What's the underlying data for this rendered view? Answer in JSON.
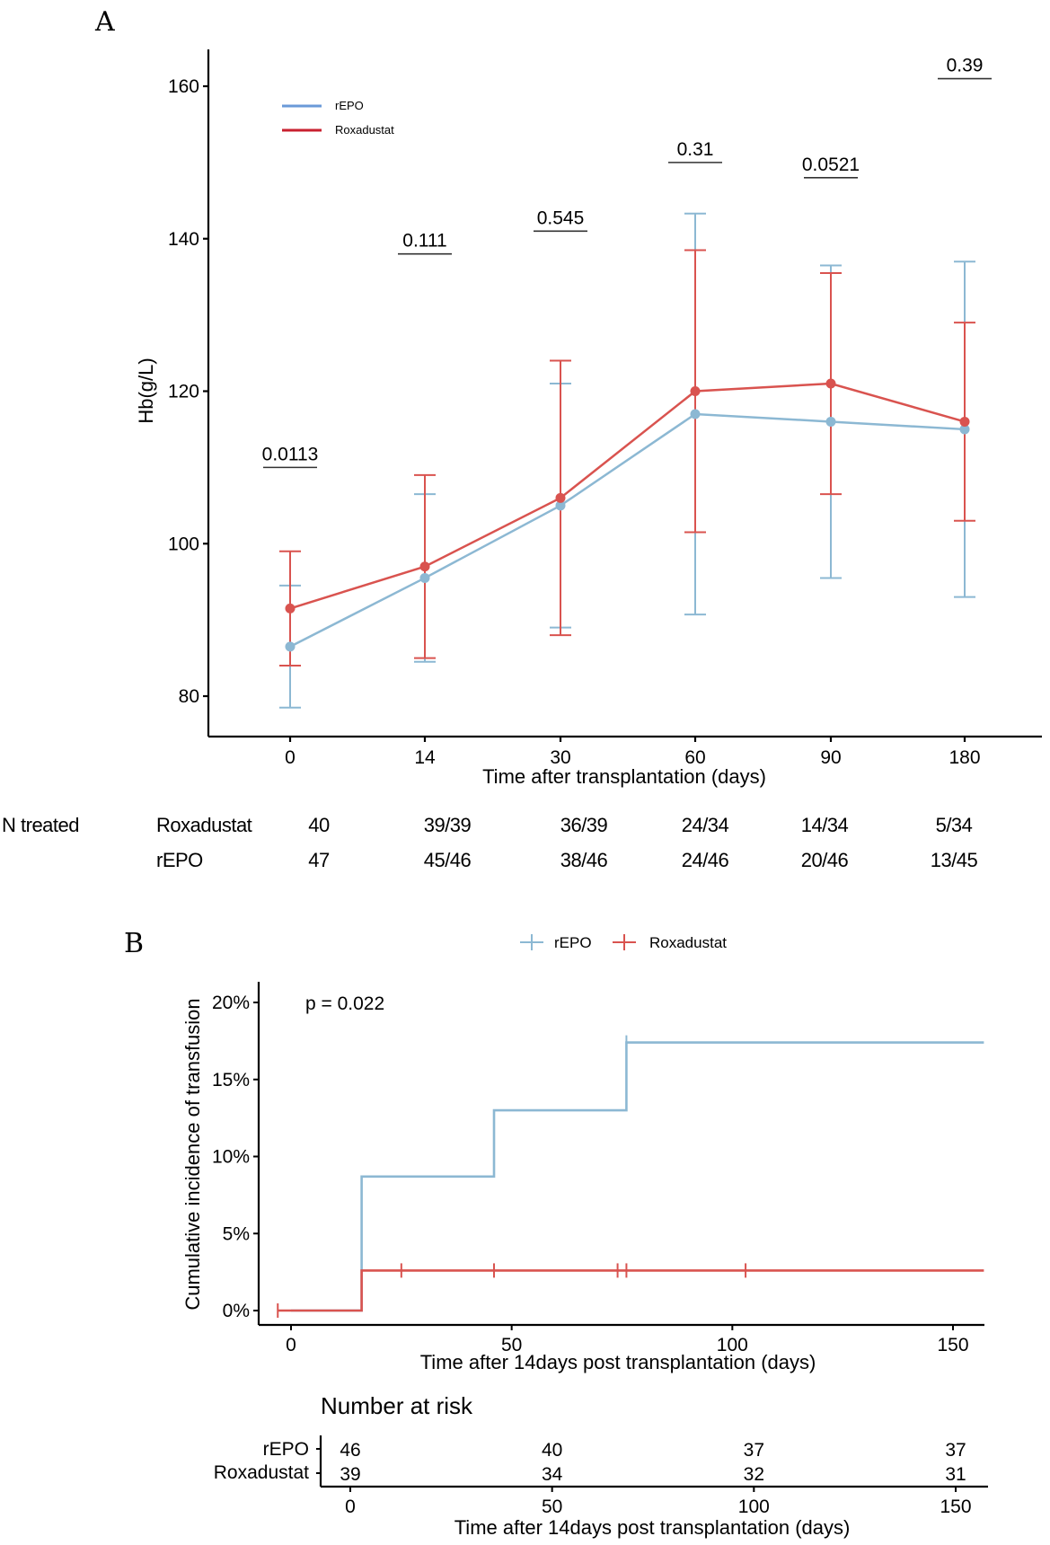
{
  "chart_data": [
    {
      "panel": "A",
      "type": "line",
      "xlabel": "Time after transplantation (days)",
      "ylabel": "Hb(g/L)",
      "categories": [
        "0",
        "14",
        "30",
        "60",
        "90",
        "180"
      ],
      "yticks": [
        80,
        100,
        120,
        140,
        160
      ],
      "ylim": [
        70,
        165
      ],
      "legend_position": "top-left",
      "grid": false,
      "series": [
        {
          "name": "rEPO",
          "color": "#8cb8d3",
          "legend_color": "#6a9ad8",
          "values": [
            86.5,
            95.5,
            105,
            117,
            116,
            115
          ],
          "error_low": [
            78.5,
            84.5,
            89,
            90.7,
            95.5,
            93
          ],
          "error_high": [
            94.5,
            106.5,
            121,
            143.3,
            136.5,
            137
          ]
        },
        {
          "name": "Roxadustat",
          "color": "#d9534f",
          "legend_color": "#c8202f",
          "values": [
            91.5,
            97,
            106,
            120,
            121,
            116
          ],
          "error_low": [
            84,
            85,
            88,
            101.5,
            106.5,
            103
          ],
          "error_high": [
            99,
            109,
            124,
            138.5,
            135.5,
            129
          ]
        }
      ],
      "annotations": [
        {
          "label": "0.0113",
          "category": "0",
          "y": 110
        },
        {
          "label": "0.111",
          "category": "14",
          "y": 138
        },
        {
          "label": "0.545",
          "category": "30",
          "y": 141
        },
        {
          "label": "0.31",
          "category": "60",
          "y": 150
        },
        {
          "label": "0.0521",
          "category": "90",
          "y": 148
        },
        {
          "label": "0.39",
          "category": "180",
          "y": 161
        }
      ],
      "n_treated": {
        "header": "N treated",
        "rows": [
          {
            "group": "Roxadustat",
            "values": [
              "40",
              "39/39",
              "36/39",
              "24/34",
              "14/34",
              "5/34"
            ]
          },
          {
            "group": "rEPO",
            "values": [
              "47",
              "45/46",
              "38/46",
              "24/46",
              "20/46",
              "13/45"
            ]
          }
        ]
      }
    },
    {
      "panel": "B",
      "type": "line",
      "subtype": "step",
      "xlabel": "Time after 14days post transplantation (days)",
      "ylabel": "Cumulative incidence of transfusion",
      "xticks": [
        0,
        50,
        100,
        150
      ],
      "xlim": [
        -9,
        157
      ],
      "yticks": [
        "0%",
        "5%",
        "10%",
        "15%",
        "20%"
      ],
      "ylim": [
        -0.01,
        0.21
      ],
      "legend_position": "top",
      "annotation": "p = 0.022",
      "series": [
        {
          "name": "rEPO",
          "color": "#8cb8d3",
          "steps": [
            [
              0,
              0
            ],
            [
              16,
              0.087
            ],
            [
              46,
              0.13
            ],
            [
              76,
              0.174
            ],
            [
              157,
              0.174
            ]
          ],
          "censor": [
            [
              76,
              0.174
            ]
          ]
        },
        {
          "name": "Roxadustat",
          "color": "#d9534f",
          "steps": [
            [
              -3,
              0
            ],
            [
              16,
              0.026
            ],
            [
              157,
              0.026
            ]
          ],
          "censor": [
            [
              -3,
              0
            ],
            [
              25,
              0.026
            ],
            [
              46,
              0.026
            ],
            [
              74,
              0.026
            ],
            [
              76,
              0.026
            ],
            [
              103,
              0.026
            ]
          ]
        }
      ],
      "risk_table": {
        "title": "Number at risk",
        "xlabel": "Time after 14days post transplantation (days)",
        "times": [
          0,
          50,
          100,
          150
        ],
        "rows": [
          {
            "group": "rEPO",
            "color": "#8cb8d3",
            "values": [
              46,
              40,
              37,
              37
            ]
          },
          {
            "group": "Roxadustat",
            "color": "#d9534f",
            "values": [
              39,
              34,
              32,
              31
            ]
          }
        ]
      }
    }
  ],
  "labels": {
    "panel_a": "A",
    "panel_b": "B"
  }
}
